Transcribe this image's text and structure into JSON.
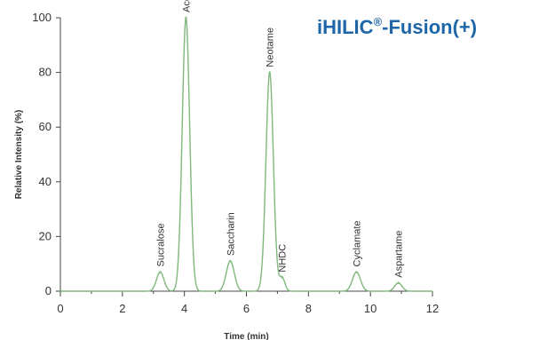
{
  "title": {
    "prefix": "iHILIC",
    "mark": "®",
    "suffix": "-Fusion(+)"
  },
  "chart_data": {
    "type": "line",
    "title": "iHILIC®-Fusion(+)",
    "xlabel": "Time (min)",
    "ylabel": "Relative Intensity (%)",
    "xlim": [
      0,
      12
    ],
    "ylim": [
      0,
      100
    ],
    "xticks": [
      0,
      2,
      4,
      6,
      8,
      10,
      12
    ],
    "yticks": [
      0,
      20,
      40,
      60,
      80,
      100
    ],
    "grid": false,
    "line_color": "#7fb87a",
    "peaks": [
      {
        "label": "Sucralose",
        "time": 3.22,
        "intensity": 7,
        "width": 0.12
      },
      {
        "label": "Acesulfame",
        "time": 4.05,
        "intensity": 100,
        "width": 0.12
      },
      {
        "label": "Saccharin",
        "time": 5.48,
        "intensity": 11,
        "width": 0.13
      },
      {
        "label": "Neotame",
        "time": 6.75,
        "intensity": 80,
        "width": 0.12
      },
      {
        "label": "NHDC",
        "time": 7.15,
        "intensity": 5,
        "width": 0.09
      },
      {
        "label": "Cyclamate",
        "time": 9.55,
        "intensity": 7,
        "width": 0.13
      },
      {
        "label": "Aspartame",
        "time": 10.9,
        "intensity": 3,
        "width": 0.12
      }
    ]
  }
}
